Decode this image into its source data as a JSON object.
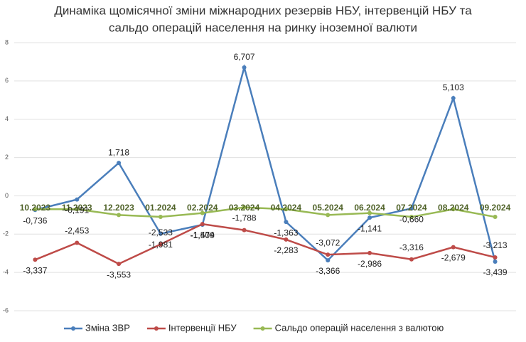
{
  "chart_data": {
    "type": "line",
    "title": [
      "Динаміка щомісячної зміни міжнародних резервів НБУ, інтервенцій НБУ та",
      "сальдо операцій населення на ринку іноземної валюти"
    ],
    "categories": [
      "10.2023",
      "11.2023",
      "12.2023",
      "01.2024",
      "02.2024",
      "03.2024",
      "04.2024",
      "05.2024",
      "06.2024",
      "07.2024",
      "08.2024",
      "09.2024"
    ],
    "series": [
      {
        "name": "Зміна ЗВР",
        "color": "#4a7ebb",
        "values": [
          -0.736,
          -0.191,
          1.718,
          -1.981,
          -1.509,
          6.707,
          -1.363,
          -3.366,
          -1.141,
          -0.66,
          5.103,
          -3.439
        ],
        "value_labels": [
          "-0,736",
          "-0,191",
          "1,718",
          "-1,981",
          "-1,509",
          "6,707",
          "-1,363",
          "-3,366",
          "-1,141",
          "-0,660",
          "5,103",
          "-3,439"
        ]
      },
      {
        "name": "Інтервенції НБУ",
        "color": "#be4b48",
        "values": [
          -3.337,
          -2.453,
          -3.553,
          -2.533,
          -1.474,
          -1.788,
          -2.283,
          -3.072,
          -2.986,
          -3.316,
          -2.679,
          -3.213
        ],
        "value_labels": [
          "-3,337",
          "-2,453",
          "-3,553",
          "-2,533",
          "-1,474",
          "-1,788",
          "-2,283",
          "-3,072",
          "-2,986",
          "-3,316",
          "-2,679",
          "-3,213"
        ]
      },
      {
        "name": "Сальдо операцій населення з валютою",
        "color": "#98b954",
        "values": [
          -0.7,
          -0.7,
          -1.0,
          -1.1,
          -0.9,
          -0.6,
          -0.7,
          -1.0,
          -0.9,
          -1.1,
          -0.7,
          -1.1
        ]
      }
    ],
    "ylim": [
      -6,
      8
    ],
    "yticks": [
      -6,
      -4,
      -2,
      0,
      2,
      4,
      6,
      8
    ],
    "grid": true,
    "legend": "bottom"
  }
}
